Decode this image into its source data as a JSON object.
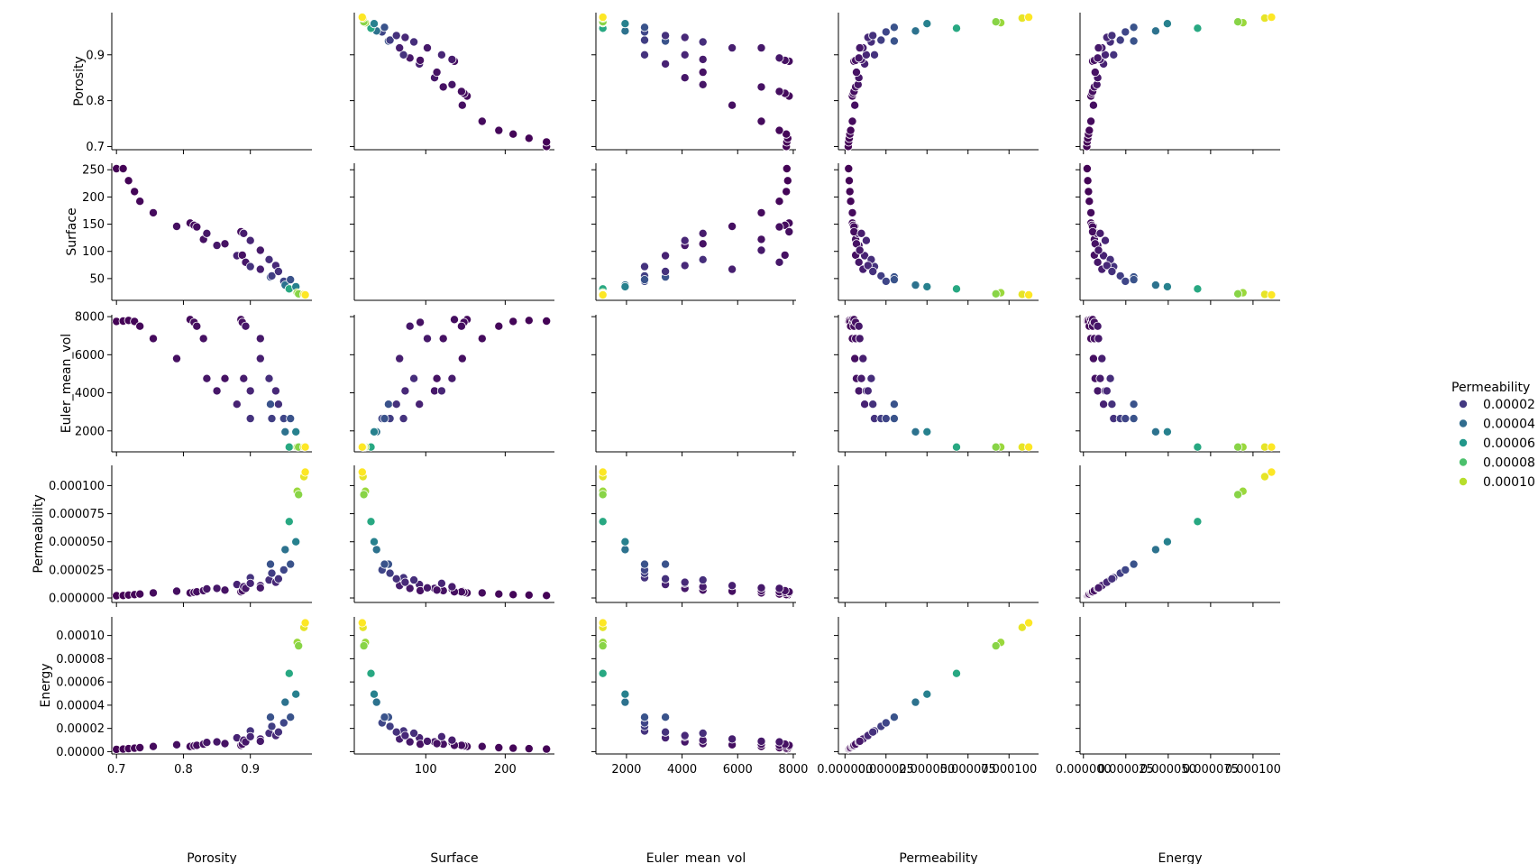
{
  "chart_data": {
    "type": "scatter",
    "kind": "pairplot",
    "hue": "Permeability",
    "variables": [
      "Porosity",
      "Surface",
      "Euler_mean_vol",
      "Permeability",
      "Energy"
    ],
    "diagonal": "empty",
    "colormap": "viridis",
    "hue_range": [
      1.5e-06,
      0.000112
    ],
    "axes": {
      "Porosity": {
        "lim": [
          0.693,
          0.992
        ],
        "ticks": [
          0.7,
          0.8,
          0.9
        ],
        "tick_labels": [
          "0.7",
          "0.8",
          "0.9"
        ]
      },
      "Surface": {
        "lim": [
          10,
          262
        ],
        "ticks": [
          50,
          100,
          150,
          200,
          250
        ],
        "tick_labels": [
          "50",
          "100",
          "150",
          "200",
          "250"
        ],
        "xticks": [
          100,
          200
        ],
        "xtick_labels": [
          "100",
          "200"
        ]
      },
      "Euler_mean_vol": {
        "lim": [
          900,
          8100
        ],
        "ticks": [
          2000,
          4000,
          6000,
          8000
        ],
        "tick_labels": [
          "2000",
          "4000",
          "6000",
          "8000"
        ]
      },
      "Permeability": {
        "lim": [
          -4e-06,
          0.000118
        ],
        "ticks": [
          0,
          2.5e-05,
          5e-05,
          7.5e-05,
          0.0001
        ],
        "tick_labels": [
          "0.000000",
          "0.000025",
          "0.000050",
          "0.000075",
          "0.000100"
        ],
        "xtick_labels": [
          "0.000000",
          "0.000025",
          "0.000050",
          "0.000075",
          "0.000100"
        ]
      },
      "Energy": {
        "lim": [
          -2e-06,
          0.000116
        ],
        "ticks": [
          0,
          2e-05,
          4e-05,
          6e-05,
          8e-05,
          0.0001
        ],
        "tick_labels": [
          "0.00000",
          "0.00002",
          "0.00004",
          "0.00006",
          "0.00008",
          "0.00010"
        ],
        "xticks": [
          0,
          2.5e-05,
          5e-05,
          7.5e-05,
          0.0001
        ],
        "xtick_labels": [
          "0.000000",
          "0.000025",
          "0.000050",
          "0.000075",
          "0.000100"
        ]
      }
    },
    "legend": {
      "title": "Permeability",
      "position": "right",
      "entries": [
        {
          "label": "0.00002",
          "value": 2e-05
        },
        {
          "label": "0.00004",
          "value": 4e-05
        },
        {
          "label": "0.00006",
          "value": 6e-05
        },
        {
          "label": "0.00008",
          "value": 8e-05
        },
        {
          "label": "0.00010",
          "value": 0.0001
        }
      ]
    },
    "fields": [
      "Porosity",
      "Surface",
      "Euler_mean_vol",
      "Permeability"
    ],
    "points": [
      [
        0.7,
        252,
        7750,
        2e-06
      ],
      [
        0.71,
        252,
        7770,
        2.2e-06
      ],
      [
        0.718,
        230,
        7800,
        2.6e-06
      ],
      [
        0.727,
        210,
        7750,
        3e-06
      ],
      [
        0.735,
        192,
        7500,
        3.5e-06
      ],
      [
        0.755,
        171,
        6850,
        4.5e-06
      ],
      [
        0.79,
        146,
        5800,
        6e-06
      ],
      [
        0.81,
        152,
        7850,
        4.5e-06
      ],
      [
        0.816,
        148,
        7700,
        5e-06
      ],
      [
        0.82,
        145,
        7500,
        5.5e-06
      ],
      [
        0.83,
        122,
        6850,
        6.5e-06
      ],
      [
        0.835,
        133,
        4750,
        8e-06
      ],
      [
        0.85,
        111,
        4100,
        8.5e-06
      ],
      [
        0.862,
        114,
        4750,
        7e-06
      ],
      [
        0.88,
        92,
        3400,
        1.2e-05
      ],
      [
        0.886,
        136,
        7850,
        5.5e-06
      ],
      [
        0.888,
        93,
        7700,
        6.5e-06
      ],
      [
        0.89,
        133,
        4750,
        1e-05
      ],
      [
        0.893,
        80,
        7500,
        8.5e-06
      ],
      [
        0.9,
        72,
        2650,
        1.8e-05
      ],
      [
        0.9,
        120,
        4100,
        1.3e-05
      ],
      [
        0.915,
        67,
        5800,
        1.1e-05
      ],
      [
        0.915,
        102,
        6850,
        9e-06
      ],
      [
        0.928,
        85,
        4750,
        1.6e-05
      ],
      [
        0.93,
        53,
        3400,
        3e-05
      ],
      [
        0.932,
        55,
        2650,
        2.2e-05
      ],
      [
        0.938,
        74,
        4100,
        1.4e-05
      ],
      [
        0.942,
        63,
        3400,
        1.7e-05
      ],
      [
        0.95,
        45,
        2650,
        2.5e-05
      ],
      [
        0.952,
        38,
        1950,
        4.3e-05
      ],
      [
        0.96,
        48,
        2650,
        3e-05
      ],
      [
        0.958,
        31,
        1150,
        6.8e-05
      ],
      [
        0.968,
        35,
        1950,
        5e-05
      ],
      [
        0.97,
        24,
        1150,
        9.5e-05
      ],
      [
        0.972,
        22,
        1150,
        9.2e-05
      ],
      [
        0.98,
        21,
        1150,
        0.000108
      ],
      [
        0.982,
        20,
        1150,
        0.000112
      ]
    ]
  }
}
